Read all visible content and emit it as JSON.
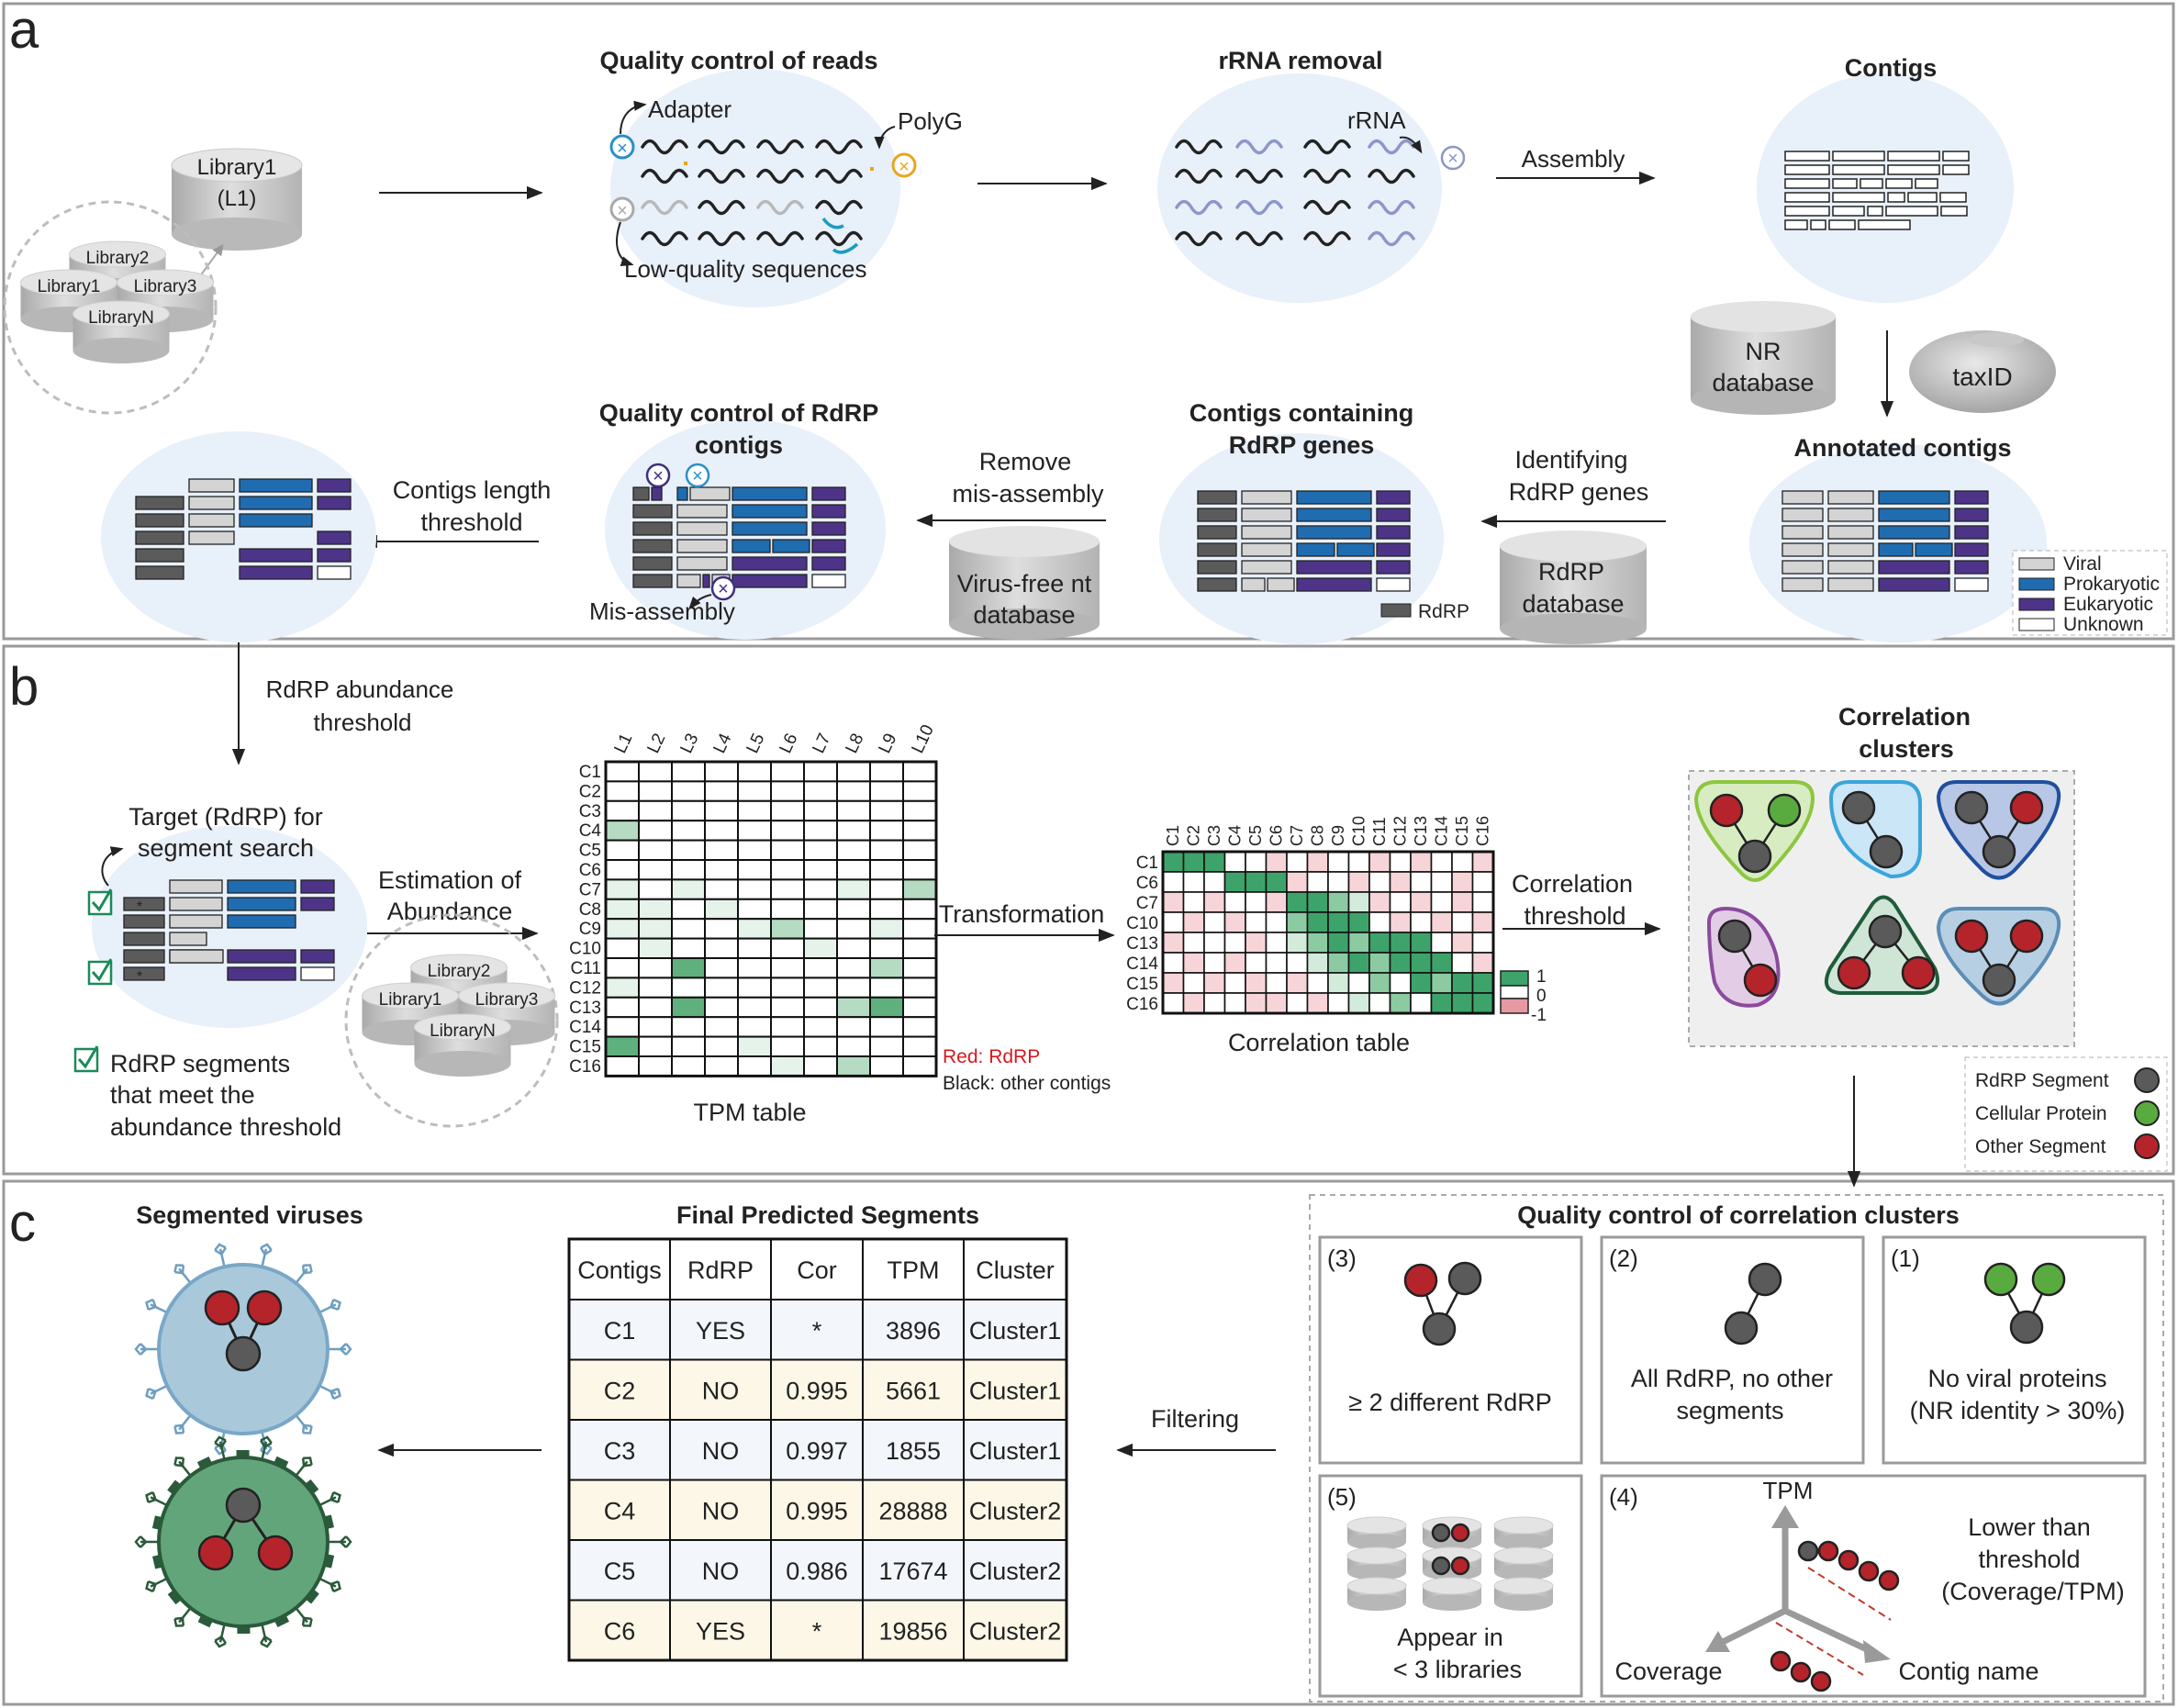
{
  "panels": {
    "a": "a",
    "b": "b",
    "c": "c"
  },
  "panel_a": {
    "library_main_line1": "Library1",
    "library_main_line2": "(L1)",
    "library_group": [
      "Library2",
      "Library1",
      "Library3",
      "LibraryN"
    ],
    "qc_reads_title": "Quality control of reads",
    "adapter": "Adapter",
    "polyg": "PolyG",
    "low_quality": "Low-quality sequences",
    "rrna_removal_title": "rRNA removal",
    "rrna": "rRNA",
    "assembly": "Assembly",
    "contigs_title": "Contigs",
    "nr_db_line1": "NR",
    "nr_db_line2": "database",
    "taxid": "taxID",
    "annotated_title": "Annotated contigs",
    "legend": [
      "Viral",
      "Prokaryotic",
      "Eukaryotic",
      "Unknown"
    ],
    "identifying_line1": "Identifying",
    "identifying_line2": "RdRP genes",
    "rdrp_db_line1": "RdRP",
    "rdrp_db_line2": "database",
    "contigs_rdrp_line1": "Contigs containing",
    "contigs_rdrp_line2": "RdRP genes",
    "rdrp_legend": "RdRP",
    "remove_line1": "Remove",
    "remove_line2": "mis-assembly",
    "virusfree_line1": "Virus-free nt",
    "virusfree_line2": "database",
    "qc_rdrp_line1": "Quality control of RdRP",
    "qc_rdrp_line2": "contigs",
    "misassembly": "Mis-assembly",
    "length_line1": "Contigs length",
    "length_line2": "threshold"
  },
  "panel_b": {
    "abundance_line1": "RdRP abundance",
    "abundance_line2": "threshold",
    "target_line1": "Target (RdRP) for",
    "target_line2": "segment search",
    "meet_line1": "RdRP segments",
    "meet_line2": "that meet the",
    "meet_line3": "abundance threshold",
    "estimation_line1": "Estimation of",
    "estimation_line2": "Abundance",
    "library_group": [
      "Library2",
      "Library1",
      "Library3",
      "LibraryN"
    ],
    "tpm_columns": [
      "L1",
      "L2",
      "L3",
      "L4",
      "L5",
      "L6",
      "L7",
      "L8",
      "L9",
      "L10"
    ],
    "tpm_rows": [
      "C1",
      "C2",
      "C3",
      "C4",
      "C5",
      "C6",
      "C7",
      "C8",
      "C9",
      "C10",
      "C11",
      "C12",
      "C13",
      "C14",
      "C15",
      "C16"
    ],
    "tpm_rows_red": [
      "C1",
      "C6",
      "C7",
      "C10",
      "C13",
      "C14",
      "C15",
      "C16"
    ],
    "tpm_heat": [
      [
        0,
        0,
        0,
        0,
        0,
        0,
        0,
        0,
        0,
        0
      ],
      [
        0,
        0,
        0,
        0,
        0,
        0,
        0,
        0,
        0,
        0
      ],
      [
        0,
        0,
        0,
        0,
        0,
        0,
        0,
        0,
        0,
        0
      ],
      [
        2,
        0,
        0,
        0,
        0,
        0,
        0,
        0,
        0,
        0
      ],
      [
        0,
        0,
        0,
        0,
        0,
        0,
        0,
        0,
        0,
        0
      ],
      [
        0,
        0,
        0,
        0,
        0,
        0,
        0,
        0,
        0,
        0
      ],
      [
        1,
        0,
        1,
        0,
        0,
        0,
        0,
        1,
        0,
        2
      ],
      [
        1,
        1,
        0,
        1,
        0,
        0,
        0,
        0,
        0,
        0
      ],
      [
        1,
        1,
        0,
        0,
        1,
        2,
        0,
        0,
        1,
        0
      ],
      [
        0,
        1,
        0,
        0,
        0,
        0,
        1,
        0,
        0,
        0
      ],
      [
        0,
        0,
        3,
        0,
        0,
        0,
        0,
        0,
        2,
        0
      ],
      [
        1,
        0,
        0,
        0,
        0,
        0,
        0,
        0,
        0,
        0
      ],
      [
        0,
        0,
        3,
        0,
        0,
        0,
        0,
        2,
        3,
        0
      ],
      [
        0,
        0,
        0,
        0,
        0,
        0,
        0,
        0,
        0,
        0
      ],
      [
        3,
        0,
        0,
        0,
        1,
        0,
        0,
        0,
        0,
        0
      ],
      [
        0,
        0,
        0,
        0,
        0,
        1,
        0,
        2,
        0,
        0
      ]
    ],
    "red_note": "Red: RdRP",
    "black_note": "Black: other contigs",
    "tpm_label": "TPM table",
    "transformation": "Transformation",
    "corr_columns": [
      "C1",
      "C2",
      "C3",
      "C4",
      "C5",
      "C6",
      "C7",
      "C8",
      "C9",
      "C10",
      "C11",
      "C12",
      "C13",
      "C14",
      "C15",
      "C16"
    ],
    "corr_columns_red": [
      "C1",
      "C6",
      "C7",
      "C10",
      "C13",
      "C14",
      "C15",
      "C16"
    ],
    "corr_rows": [
      "C1",
      "C6",
      "C7",
      "C10",
      "C13",
      "C14",
      "C15",
      "C16"
    ],
    "corr_heat": [
      [
        3,
        3,
        3,
        0,
        0,
        -1,
        0,
        -1,
        0,
        0,
        -1,
        0,
        -1,
        0,
        0,
        -1
      ],
      [
        0,
        0,
        0,
        3,
        3,
        3,
        -1,
        0,
        0,
        -1,
        0,
        -1,
        0,
        0,
        -1,
        0
      ],
      [
        -1,
        0,
        -1,
        0,
        0,
        -1,
        3,
        3,
        2,
        1,
        -1,
        0,
        -1,
        0,
        -1,
        0
      ],
      [
        0,
        -1,
        0,
        -1,
        0,
        0,
        2,
        3,
        3,
        3,
        0,
        -1,
        0,
        -1,
        0,
        -1
      ],
      [
        -1,
        0,
        0,
        0,
        -1,
        0,
        1,
        2,
        3,
        2,
        3,
        3,
        3,
        0,
        -1,
        0
      ],
      [
        0,
        -1,
        0,
        -1,
        0,
        0,
        0,
        1,
        2,
        3,
        2,
        3,
        3,
        3,
        0,
        -1
      ],
      [
        -1,
        0,
        -1,
        0,
        -1,
        0,
        -1,
        0,
        1,
        0,
        2,
        0,
        3,
        2,
        3,
        3
      ],
      [
        0,
        -1,
        0,
        0,
        -1,
        -1,
        0,
        -1,
        0,
        1,
        0,
        2,
        0,
        3,
        3,
        3
      ]
    ],
    "scale": [
      "1",
      "0",
      "-1"
    ],
    "corr_label": "Correlation table",
    "corr_thresh_line1": "Correlation",
    "corr_thresh_line2": "threshold",
    "clusters_line1": "Correlation",
    "clusters_line2": "clusters",
    "node_legend": [
      "RdRP Segment",
      "Cellular Protein",
      "Other Segment"
    ],
    "colors": {
      "rdrp_node": "#5a5a5a",
      "cellular_node": "#5aab3f",
      "other_node": "#b5242b"
    }
  },
  "panel_c": {
    "segmented_title": "Segmented viruses",
    "final_title": "Final Predicted Segments",
    "table_headers": [
      "Contigs",
      "RdRP",
      "Cor",
      "TPM",
      "Cluster"
    ],
    "table_rows": [
      [
        "C1",
        "YES",
        "*",
        "3896",
        "Cluster1"
      ],
      [
        "C2",
        "NO",
        "0.995",
        "5661",
        "Cluster1"
      ],
      [
        "C3",
        "NO",
        "0.997",
        "1855",
        "Cluster1"
      ],
      [
        "C4",
        "NO",
        "0.995",
        "28888",
        "Cluster2"
      ],
      [
        "C5",
        "NO",
        "0.986",
        "17674",
        "Cluster2"
      ],
      [
        "C6",
        "YES",
        "*",
        "19856",
        "Cluster2"
      ]
    ],
    "red_contigs": [
      "C1",
      "C6"
    ],
    "filtering": "Filtering",
    "qc_title": "Quality control of correlation clusters",
    "box3_num": "(3)",
    "box3_text": "≥ 2 different RdRP",
    "box2_num": "(2)",
    "box2_line1": "All RdRP, no other",
    "box2_line2": "segments",
    "box1_num": "(1)",
    "box1_line1": "No viral proteins",
    "box1_line2": "(NR identity > 30%)",
    "box5_num": "(5)",
    "box5_line1": "Appear in",
    "box5_line2": "< 3 libraries",
    "box4_num": "(4)",
    "box4_tpm": "TPM",
    "box4_line1": "Lower  than",
    "box4_line2": "threshold",
    "box4_line3": "(Coverage/TPM)",
    "box4_coverage": "Coverage",
    "box4_contig": "Contig name"
  },
  "colors": {
    "viral": "#d4d4d4",
    "prokaryotic": "#1f6cb0",
    "eukaryotic": "#4e3488",
    "unknown": "#ffffff",
    "rdrp_bar": "#5b5b5b",
    "circle_bg": "#e8f0fa",
    "red_text": "#d71920",
    "row_blue": "#f3f6fb",
    "row_yellow": "#fdf7e7"
  }
}
